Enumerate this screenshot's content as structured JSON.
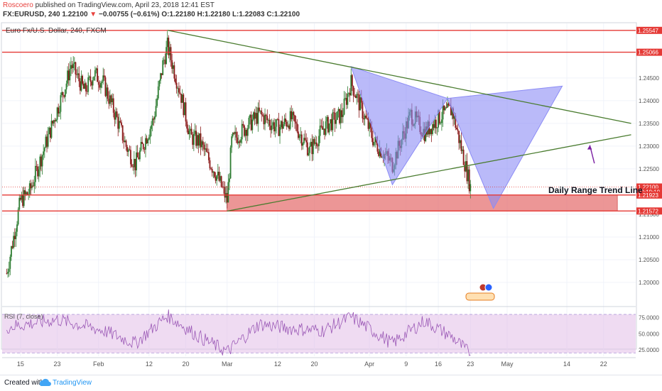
{
  "header": {
    "author": "Roscoero",
    "published_text": "published on TradingView.com, April 23, 2018 12:41 EST",
    "symbol": "FX:EURUSD, 240",
    "last": "1.22100",
    "arrow": "▼",
    "change": "−0.00755 (−0.61%)",
    "o_label": "O:",
    "o_value": "1.22180",
    "h_label": "H:",
    "h_value": "1.22180",
    "l_label": "L:",
    "l_value": "1.22083",
    "c_label": "C:",
    "c_value": "1.22100"
  },
  "chart_data": {
    "type": "candlestick",
    "title": "Euro Fx/U.S. Dollar, 240, FXCM",
    "x_ticks": [
      "15",
      "23",
      "Feb",
      "12",
      "20",
      "Mar",
      "12",
      "20",
      "Apr",
      "9",
      "16",
      "23",
      "May",
      "14",
      "22"
    ],
    "ylim": [
      1.195,
      1.257
    ],
    "y_ticks": [
      "1.24500",
      "1.24000",
      "1.23500",
      "1.23000",
      "1.22500",
      "1.21500",
      "1.21000",
      "1.20500",
      "1.20000"
    ],
    "price_flags": [
      {
        "label": "1.25547",
        "value": 1.25547
      },
      {
        "label": "1.25066",
        "value": 1.25066
      },
      {
        "label": "1.22100",
        "value": 1.221
      },
      {
        "label": "03:19:19",
        "value": 1.2199
      },
      {
        "label": "1.21923",
        "value": 1.21923
      },
      {
        "label": "1.21572",
        "value": 1.21572
      }
    ],
    "horizontal_lines": [
      1.25547,
      1.25066,
      1.21923,
      1.21572
    ],
    "support_zone": [
      1.21572,
      1.21923
    ],
    "trend_lines": [
      {
        "from": [
          "Feb 16",
          1.2555
        ],
        "to": [
          "May 28",
          1.235
        ]
      },
      {
        "from": [
          "Mar 1",
          1.2157
        ],
        "to": [
          "May 28",
          1.2325
        ]
      }
    ],
    "harmonic_pattern": {
      "points": [
        [
          "Mar 28",
          1.2475
        ],
        [
          "Apr 6",
          1.2215
        ],
        [
          "Apr 18",
          1.2405
        ],
        [
          "Apr 28",
          1.2163
        ],
        [
          "May 13",
          1.2432
        ]
      ],
      "color": "#8c8cf5"
    },
    "annotation": "Daily Range Trend Line",
    "annotation_color": "#7b1fa2",
    "candle_colors": {
      "up": "#2e7d32",
      "down": "#8b1a1a"
    },
    "rsi": {
      "label": "RSI (7, close)",
      "ylim": [
        15,
        90
      ],
      "ticks": [
        "75.0000",
        "50.0000",
        "25.0000"
      ],
      "upper": 80,
      "lower": 20,
      "color": "#9b59b6"
    },
    "series": [
      {
        "name": "close",
        "x": [
          "Jan 12",
          "Jan 15",
          "Jan 17",
          "Jan 19",
          "Jan 23",
          "Jan 25",
          "Jan 26",
          "Jan 29",
          "Jan 31",
          "Feb 2",
          "Feb 5",
          "Feb 7",
          "Feb 9",
          "Feb 13",
          "Feb 15",
          "Feb 16",
          "Feb 19",
          "Feb 21",
          "Feb 23",
          "Feb 27",
          "Mar 1",
          "Mar 2",
          "Mar 5",
          "Mar 8",
          "Mar 12",
          "Mar 15",
          "Mar 19",
          "Mar 22",
          "Mar 26",
          "Mar 28",
          "Apr 2",
          "Apr 6",
          "Apr 10",
          "Apr 13",
          "Apr 17",
          "Apr 19",
          "Apr 23"
        ],
        "values": [
          1.202,
          1.218,
          1.22,
          1.226,
          1.238,
          1.244,
          1.248,
          1.242,
          1.246,
          1.244,
          1.236,
          1.23,
          1.226,
          1.236,
          1.248,
          1.252,
          1.241,
          1.232,
          1.231,
          1.223,
          1.218,
          1.231,
          1.234,
          1.237,
          1.234,
          1.236,
          1.229,
          1.234,
          1.237,
          1.244,
          1.231,
          1.226,
          1.237,
          1.233,
          1.237,
          1.238,
          1.221
        ]
      },
      {
        "name": "RSI",
        "x": [
          "Jan 12",
          "Jan 23",
          "Feb 2",
          "Feb 9",
          "Feb 16",
          "Feb 23",
          "Mar 1",
          "Mar 8",
          "Mar 15",
          "Mar 22",
          "Mar 28",
          "Apr 6",
          "Apr 13",
          "Apr 19",
          "Apr 23"
        ],
        "values": [
          60,
          72,
          55,
          35,
          78,
          45,
          22,
          65,
          58,
          55,
          76,
          35,
          70,
          45,
          18
        ]
      }
    ]
  },
  "footer": {
    "created_with": "Created with",
    "brand": "TradingView"
  }
}
